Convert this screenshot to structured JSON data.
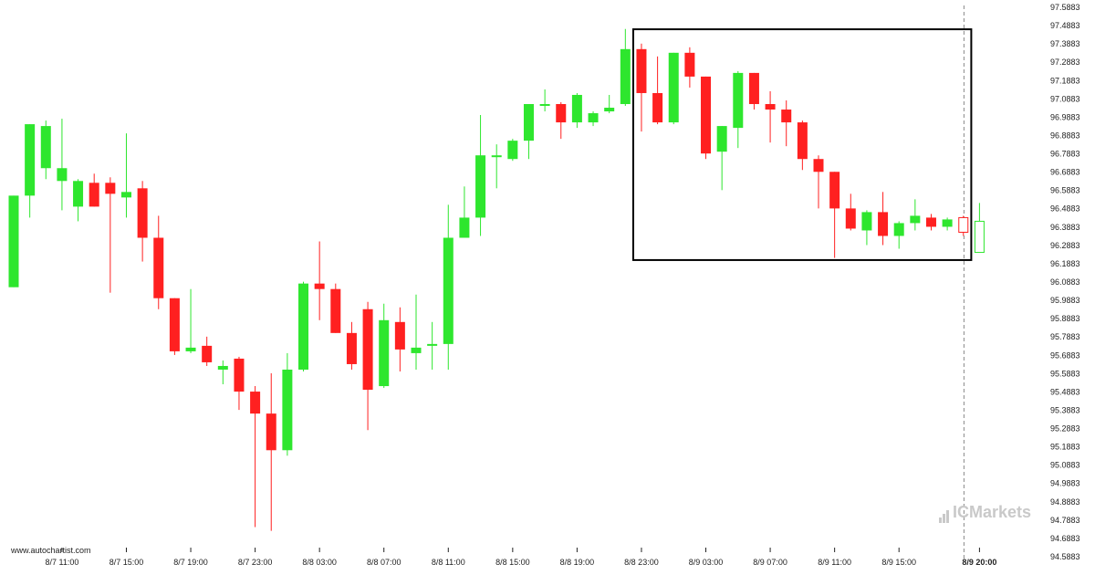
{
  "watermark": "www.autochartist.com",
  "brand": "ICMarkets",
  "colors": {
    "up": "#2ee62e",
    "down": "#ff2020",
    "box": "#000000",
    "marker": "#888888",
    "axis": "#222222"
  },
  "chart_data": {
    "type": "candlestick",
    "ylim": [
      94.5883,
      97.5883
    ],
    "y_ticks": [
      "94.5883",
      "94.6883",
      "94.7883",
      "94.8883",
      "94.9883",
      "95.0883",
      "95.1883",
      "95.2883",
      "95.3883",
      "95.4883",
      "95.5883",
      "95.6883",
      "95.7883",
      "95.8883",
      "95.9883",
      "96.0883",
      "96.1883",
      "96.2883",
      "96.3883",
      "96.4883",
      "96.5883",
      "96.6883",
      "96.7883",
      "96.8883",
      "96.9883",
      "97.0883",
      "97.1883",
      "97.2883",
      "97.3883",
      "97.4883",
      "97.5883"
    ],
    "x_ticks": [
      {
        "label": "8/7 11:00",
        "index": 3
      },
      {
        "label": "8/7 15:00",
        "index": 7
      },
      {
        "label": "8/7 19:00",
        "index": 11
      },
      {
        "label": "8/7 23:00",
        "index": 15
      },
      {
        "label": "8/8 03:00",
        "index": 19
      },
      {
        "label": "8/8 07:00",
        "index": 23
      },
      {
        "label": "8/8 11:00",
        "index": 27
      },
      {
        "label": "8/8 15:00",
        "index": 31
      },
      {
        "label": "8/8 19:00",
        "index": 35
      },
      {
        "label": "8/8 23:00",
        "index": 39
      },
      {
        "label": "8/9 03:00",
        "index": 43
      },
      {
        "label": "8/9 07:00",
        "index": 47
      },
      {
        "label": "8/9 11:00",
        "index": 51
      },
      {
        "label": "8/9 15:00",
        "index": 55
      },
      {
        "label": "8/9 20:00",
        "index": 60,
        "bold": true
      }
    ],
    "candles": [
      {
        "o": 96.06,
        "h": 96.56,
        "l": 96.06,
        "c": 96.56
      },
      {
        "o": 96.56,
        "h": 96.95,
        "l": 96.44,
        "c": 96.95
      },
      {
        "o": 96.71,
        "h": 96.97,
        "l": 96.65,
        "c": 96.94
      },
      {
        "o": 96.64,
        "h": 96.98,
        "l": 96.48,
        "c": 96.71
      },
      {
        "o": 96.5,
        "h": 96.65,
        "l": 96.42,
        "c": 96.64
      },
      {
        "o": 96.63,
        "h": 96.68,
        "l": 96.5,
        "c": 96.5
      },
      {
        "o": 96.63,
        "h": 96.66,
        "l": 96.03,
        "c": 96.57
      },
      {
        "o": 96.55,
        "h": 96.9,
        "l": 96.44,
        "c": 96.58
      },
      {
        "o": 96.6,
        "h": 96.64,
        "l": 96.2,
        "c": 96.33
      },
      {
        "o": 96.33,
        "h": 96.45,
        "l": 95.94,
        "c": 96.0
      },
      {
        "o": 96.0,
        "h": 96.0,
        "l": 95.69,
        "c": 95.71
      },
      {
        "o": 95.71,
        "h": 96.05,
        "l": 95.7,
        "c": 95.73
      },
      {
        "o": 95.74,
        "h": 95.79,
        "l": 95.63,
        "c": 95.65
      },
      {
        "o": 95.61,
        "h": 95.66,
        "l": 95.53,
        "c": 95.63
      },
      {
        "o": 95.67,
        "h": 95.68,
        "l": 95.39,
        "c": 95.49
      },
      {
        "o": 95.49,
        "h": 95.52,
        "l": 94.75,
        "c": 95.37
      },
      {
        "o": 95.37,
        "h": 95.59,
        "l": 94.73,
        "c": 95.17
      },
      {
        "o": 95.17,
        "h": 95.7,
        "l": 95.14,
        "c": 95.61
      },
      {
        "o": 95.61,
        "h": 96.09,
        "l": 95.6,
        "c": 96.08
      },
      {
        "o": 96.08,
        "h": 96.31,
        "l": 95.88,
        "c": 96.05
      },
      {
        "o": 96.05,
        "h": 96.08,
        "l": 95.81,
        "c": 95.81
      },
      {
        "o": 95.81,
        "h": 95.87,
        "l": 95.61,
        "c": 95.64
      },
      {
        "o": 95.94,
        "h": 95.98,
        "l": 95.28,
        "c": 95.5
      },
      {
        "o": 95.52,
        "h": 95.97,
        "l": 95.51,
        "c": 95.88
      },
      {
        "o": 95.87,
        "h": 95.95,
        "l": 95.6,
        "c": 95.72
      },
      {
        "o": 95.7,
        "h": 96.02,
        "l": 95.61,
        "c": 95.73
      },
      {
        "o": 95.74,
        "h": 95.87,
        "l": 95.61,
        "c": 95.75
      },
      {
        "o": 95.75,
        "h": 96.51,
        "l": 95.61,
        "c": 96.33
      },
      {
        "o": 96.33,
        "h": 96.61,
        "l": 96.33,
        "c": 96.44
      },
      {
        "o": 96.44,
        "h": 97.0,
        "l": 96.34,
        "c": 96.78
      },
      {
        "o": 96.78,
        "h": 96.84,
        "l": 96.6,
        "c": 96.78
      },
      {
        "o": 96.76,
        "h": 96.87,
        "l": 96.75,
        "c": 96.86
      },
      {
        "o": 96.86,
        "h": 97.06,
        "l": 96.76,
        "c": 97.06
      },
      {
        "o": 97.06,
        "h": 97.14,
        "l": 97.02,
        "c": 97.06
      },
      {
        "o": 97.06,
        "h": 97.07,
        "l": 96.87,
        "c": 96.96
      },
      {
        "o": 96.96,
        "h": 97.12,
        "l": 96.93,
        "c": 97.11
      },
      {
        "o": 96.96,
        "h": 97.02,
        "l": 96.94,
        "c": 97.01
      },
      {
        "o": 97.02,
        "h": 97.11,
        "l": 97.01,
        "c": 97.04
      },
      {
        "o": 97.06,
        "h": 97.47,
        "l": 97.05,
        "c": 97.36
      },
      {
        "o": 97.36,
        "h": 97.39,
        "l": 96.91,
        "c": 97.12
      },
      {
        "o": 97.12,
        "h": 97.32,
        "l": 96.95,
        "c": 96.96
      },
      {
        "o": 96.96,
        "h": 97.34,
        "l": 96.95,
        "c": 97.34
      },
      {
        "o": 97.34,
        "h": 97.37,
        "l": 97.15,
        "c": 97.21
      },
      {
        "o": 97.21,
        "h": 97.21,
        "l": 96.76,
        "c": 96.79
      },
      {
        "o": 96.8,
        "h": 96.94,
        "l": 96.59,
        "c": 96.94
      },
      {
        "o": 96.93,
        "h": 97.24,
        "l": 96.82,
        "c": 97.23
      },
      {
        "o": 97.23,
        "h": 97.23,
        "l": 97.03,
        "c": 97.06
      },
      {
        "o": 97.06,
        "h": 97.13,
        "l": 96.85,
        "c": 97.03
      },
      {
        "o": 97.03,
        "h": 97.08,
        "l": 96.83,
        "c": 96.96
      },
      {
        "o": 96.96,
        "h": 96.97,
        "l": 96.7,
        "c": 96.76
      },
      {
        "o": 96.76,
        "h": 96.78,
        "l": 96.49,
        "c": 96.69
      },
      {
        "o": 96.69,
        "h": 96.69,
        "l": 96.22,
        "c": 96.49
      },
      {
        "o": 96.49,
        "h": 96.57,
        "l": 96.37,
        "c": 96.38
      },
      {
        "o": 96.37,
        "h": 96.48,
        "l": 96.29,
        "c": 96.47
      },
      {
        "o": 96.47,
        "h": 96.58,
        "l": 96.29,
        "c": 96.34
      },
      {
        "o": 96.34,
        "h": 96.42,
        "l": 96.27,
        "c": 96.41
      },
      {
        "o": 96.41,
        "h": 96.54,
        "l": 96.37,
        "c": 96.45
      },
      {
        "o": 96.44,
        "h": 96.46,
        "l": 96.37,
        "c": 96.39
      },
      {
        "o": 96.39,
        "h": 96.44,
        "l": 96.37,
        "c": 96.43
      },
      {
        "o": 96.44,
        "h": 96.45,
        "l": 96.34,
        "c": 96.36,
        "hollow": true
      },
      {
        "o": 96.25,
        "h": 96.52,
        "l": 96.25,
        "c": 96.42,
        "hollow": true
      }
    ],
    "pattern_box": {
      "start_index": 39,
      "end_index": 60,
      "low": 96.2083,
      "high": 97.4683
    },
    "current_marker_index": 60
  }
}
